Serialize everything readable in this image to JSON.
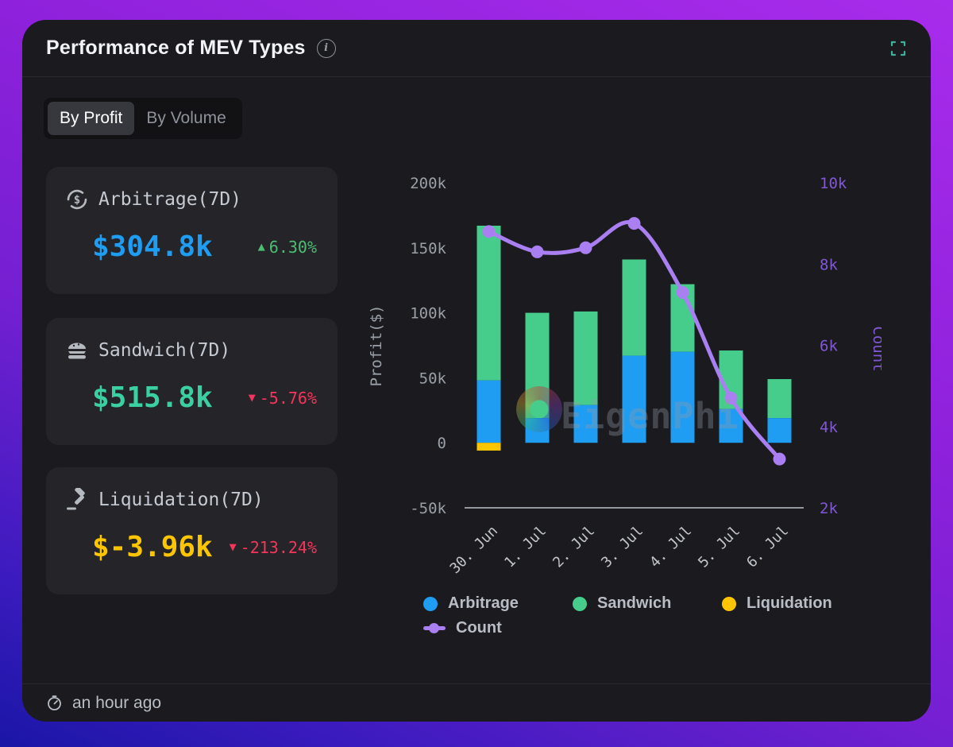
{
  "header": {
    "title": "Performance of MEV Types"
  },
  "tabs": {
    "items": [
      {
        "label": "By Profit",
        "active": true
      },
      {
        "label": "By Volume",
        "active": false
      }
    ]
  },
  "colors": {
    "up": "#4dbd74",
    "down": "#f5365c",
    "fullscreen_icon": "#3fae9b",
    "left_axis_text": "#9aa0a8",
    "right_axis_text": "#8257d6",
    "category_text": "#c2c5cc",
    "axis_line": "#93989f"
  },
  "cards": [
    {
      "icon": "dollar-exchange-icon",
      "label": "Arbitrage(7D)",
      "value": "$304.8k",
      "value_color": "#1e9df2",
      "arrow": "▲",
      "change": "6.30%",
      "direction": "up"
    },
    {
      "icon": "sandwich-icon",
      "label": "Sandwich(7D)",
      "value": "$515.8k",
      "value_color": "#3bd0a2",
      "arrow": "▼",
      "change": "-5.76%",
      "direction": "down"
    },
    {
      "icon": "gavel-icon",
      "label": "Liquidation(7D)",
      "value": "$-3.96k",
      "value_color": "#fdc500",
      "arrow": "▼",
      "change": "-213.24%",
      "direction": "down"
    }
  ],
  "chart_data": {
    "type": "bar+line",
    "categories": [
      "30. Jun",
      "1. Jul",
      "2. Jul",
      "3. Jul",
      "4. Jul",
      "5. Jul",
      "6. Jul"
    ],
    "series": [
      {
        "name": "Arbitrage",
        "kind": "bar",
        "color": "#1e9df2",
        "axis": "left",
        "values": [
          48000,
          19000,
          29000,
          67000,
          70000,
          26000,
          19000
        ]
      },
      {
        "name": "Sandwich",
        "kind": "bar",
        "color": "#46cd8c",
        "axis": "left",
        "values": [
          119000,
          81000,
          72000,
          74000,
          52000,
          45000,
          30000
        ]
      },
      {
        "name": "Liquidation",
        "kind": "bar",
        "color": "#fdc500",
        "axis": "left",
        "values": [
          -6000,
          0,
          0,
          0,
          0,
          0,
          0
        ]
      },
      {
        "name": "Count",
        "kind": "line",
        "color": "#a97ff2",
        "axis": "right",
        "values": [
          8800,
          8300,
          8400,
          9000,
          7300,
          4700,
          3200
        ]
      }
    ],
    "left_axis": {
      "label": "Profit($)",
      "min": -50000,
      "max": 200000,
      "ticks": [
        {
          "v": 200000,
          "label": "200k"
        },
        {
          "v": 150000,
          "label": "150k"
        },
        {
          "v": 100000,
          "label": "100k"
        },
        {
          "v": 50000,
          "label": "50k"
        },
        {
          "v": 0,
          "label": "0"
        },
        {
          "v": -50000,
          "label": "-50k"
        }
      ]
    },
    "right_axis": {
      "label": "Count",
      "min": 2000,
      "max": 10000,
      "ticks": [
        {
          "v": 10000,
          "label": "10k"
        },
        {
          "v": 8000,
          "label": "8k"
        },
        {
          "v": 6000,
          "label": "6k"
        },
        {
          "v": 4000,
          "label": "4k"
        },
        {
          "v": 2000,
          "label": "2k"
        }
      ]
    },
    "legend": [
      {
        "name": "Arbitrage",
        "color": "#1e9df2",
        "marker": "circle"
      },
      {
        "name": "Sandwich",
        "color": "#46cd8c",
        "marker": "circle"
      },
      {
        "name": "Liquidation",
        "color": "#fdc500",
        "marker": "circle"
      },
      {
        "name": "Count",
        "color": "#a97ff2",
        "marker": "line"
      }
    ],
    "grid": false,
    "legend_position": "bottom"
  },
  "watermark": {
    "text": "EigenPhi"
  },
  "footer": {
    "updated": "an hour ago"
  }
}
